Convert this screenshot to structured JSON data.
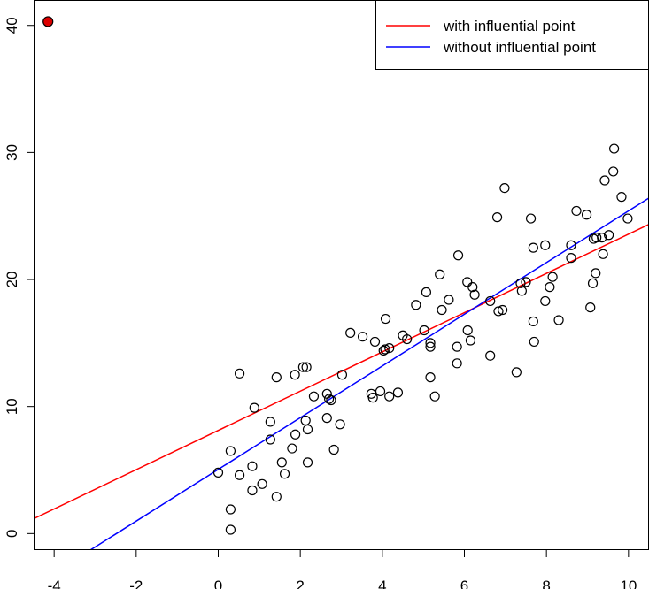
{
  "chart_data": {
    "type": "scatter",
    "title": "",
    "xlabel": "",
    "ylabel": "",
    "xlim": [
      -4.5,
      10.5
    ],
    "ylim": [
      -1.3,
      42.0
    ],
    "x_ticks": [
      -4,
      -2,
      0,
      2,
      4,
      6,
      8,
      10
    ],
    "y_ticks": [
      0,
      10,
      20,
      30,
      40
    ],
    "grid": false,
    "legend_position": "top-right",
    "legend": [
      {
        "label": "with influential point",
        "color": "#ff0000"
      },
      {
        "label": "without influential point",
        "color": "#0000ff"
      }
    ],
    "series": [
      {
        "type": "points",
        "marker": "open-circle",
        "color": "#000000",
        "points": [
          [
            0.0,
            4.8
          ],
          [
            0.3,
            1.9
          ],
          [
            0.3,
            0.3
          ],
          [
            0.3,
            6.5
          ],
          [
            0.52,
            4.6
          ],
          [
            0.52,
            12.6
          ],
          [
            0.83,
            5.3
          ],
          [
            0.83,
            3.4
          ],
          [
            0.88,
            9.9
          ],
          [
            1.07,
            3.9
          ],
          [
            1.27,
            8.8
          ],
          [
            1.27,
            7.4
          ],
          [
            1.42,
            2.9
          ],
          [
            1.42,
            12.3
          ],
          [
            1.55,
            5.6
          ],
          [
            1.62,
            4.7
          ],
          [
            1.8,
            6.7
          ],
          [
            1.88,
            7.8
          ],
          [
            1.87,
            12.5
          ],
          [
            2.07,
            13.1
          ],
          [
            2.13,
            8.9
          ],
          [
            2.15,
            13.1
          ],
          [
            2.18,
            8.2
          ],
          [
            2.18,
            5.6
          ],
          [
            2.33,
            10.8
          ],
          [
            2.65,
            11.0
          ],
          [
            2.65,
            9.1
          ],
          [
            2.7,
            10.6
          ],
          [
            2.75,
            10.5
          ],
          [
            2.82,
            6.6
          ],
          [
            2.97,
            8.6
          ],
          [
            3.02,
            12.5
          ],
          [
            3.22,
            15.8
          ],
          [
            3.52,
            15.5
          ],
          [
            3.73,
            11.0
          ],
          [
            3.77,
            10.7
          ],
          [
            3.82,
            15.1
          ],
          [
            3.95,
            11.2
          ],
          [
            4.03,
            14.4
          ],
          [
            4.07,
            14.5
          ],
          [
            4.08,
            16.9
          ],
          [
            4.17,
            14.6
          ],
          [
            4.17,
            10.8
          ],
          [
            4.38,
            11.1
          ],
          [
            4.5,
            15.6
          ],
          [
            4.6,
            15.3
          ],
          [
            4.82,
            18.0
          ],
          [
            5.02,
            16.0
          ],
          [
            5.07,
            19.0
          ],
          [
            5.17,
            15.0
          ],
          [
            5.17,
            14.7
          ],
          [
            5.17,
            12.3
          ],
          [
            5.28,
            10.8
          ],
          [
            5.4,
            20.4
          ],
          [
            5.45,
            17.6
          ],
          [
            5.62,
            18.4
          ],
          [
            5.82,
            13.4
          ],
          [
            5.82,
            14.7
          ],
          [
            5.85,
            21.9
          ],
          [
            6.07,
            19.8
          ],
          [
            6.08,
            16.0
          ],
          [
            6.15,
            15.2
          ],
          [
            6.2,
            19.4
          ],
          [
            6.25,
            18.8
          ],
          [
            6.63,
            18.3
          ],
          [
            6.63,
            14.0
          ],
          [
            6.8,
            24.9
          ],
          [
            6.83,
            17.5
          ],
          [
            6.93,
            17.6
          ],
          [
            6.98,
            27.2
          ],
          [
            7.27,
            12.7
          ],
          [
            7.37,
            19.7
          ],
          [
            7.4,
            19.1
          ],
          [
            7.5,
            19.8
          ],
          [
            7.62,
            24.8
          ],
          [
            7.68,
            22.5
          ],
          [
            7.68,
            16.7
          ],
          [
            7.7,
            15.1
          ],
          [
            7.97,
            22.7
          ],
          [
            7.97,
            18.3
          ],
          [
            8.08,
            19.4
          ],
          [
            8.15,
            20.2
          ],
          [
            8.3,
            16.8
          ],
          [
            8.6,
            21.7
          ],
          [
            8.6,
            22.7
          ],
          [
            8.73,
            25.4
          ],
          [
            8.98,
            25.1
          ],
          [
            9.07,
            17.8
          ],
          [
            9.13,
            19.7
          ],
          [
            9.15,
            23.2
          ],
          [
            9.2,
            20.5
          ],
          [
            9.22,
            23.3
          ],
          [
            9.35,
            23.3
          ],
          [
            9.38,
            22.0
          ],
          [
            9.42,
            27.8
          ],
          [
            9.52,
            23.5
          ],
          [
            9.63,
            28.5
          ],
          [
            9.65,
            30.3
          ],
          [
            9.83,
            26.5
          ],
          [
            9.98,
            24.8
          ]
        ]
      },
      {
        "type": "points",
        "marker": "filled-circle",
        "color": "#dd0000",
        "points": [
          [
            -4.15,
            40.3
          ]
        ]
      },
      {
        "type": "line",
        "name": "with influential point",
        "color": "#ff0000",
        "intercept": 8.12,
        "slope": 1.545
      },
      {
        "type": "line",
        "name": "without influential point",
        "color": "#0000ff",
        "intercept": 5.05,
        "slope": 2.035
      }
    ]
  }
}
